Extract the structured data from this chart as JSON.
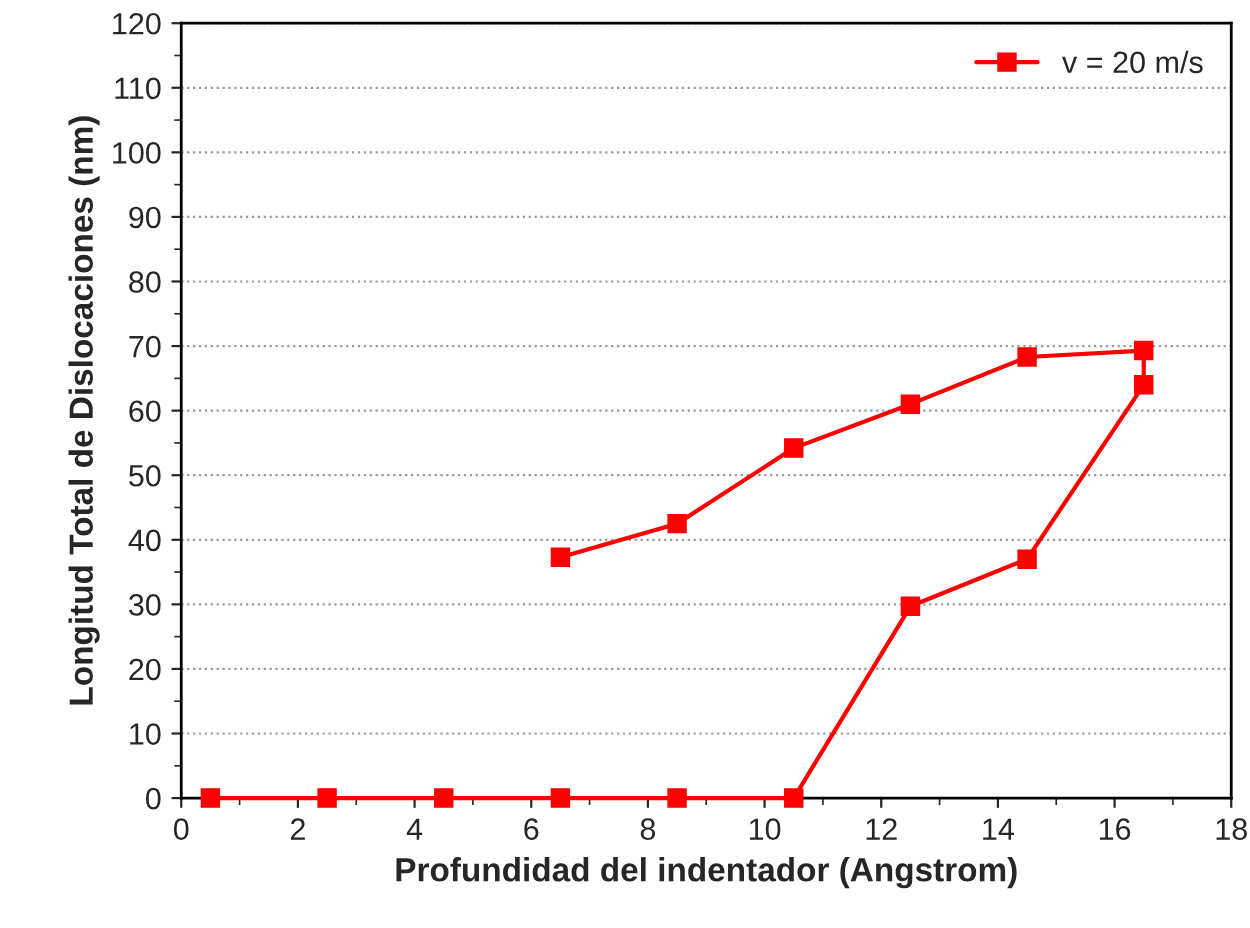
{
  "chart_data": {
    "type": "line",
    "xlabel": "Profundidad del indentador (Angstrom)",
    "ylabel": "Longitud Total de Dislocaciones (nm)",
    "series": [
      {
        "name": "v = 20 m/s",
        "color": "#ff0000",
        "x": [
          0.5,
          2.5,
          4.5,
          6.5,
          8.5,
          10.5,
          12.5,
          14.5,
          16.5,
          16.5,
          14.5,
          12.5,
          10.5,
          8.5,
          6.5
        ],
        "values": [
          0,
          0,
          0,
          0,
          0,
          0,
          29.7,
          37,
          64,
          69.3,
          68.3,
          61,
          54.2,
          42.5,
          37.3
        ]
      }
    ],
    "xlim": [
      0,
      18
    ],
    "xticks": [
      0,
      2,
      4,
      6,
      8,
      10,
      12,
      14,
      16,
      18
    ],
    "ylim": [
      0,
      120
    ],
    "yticks": [
      0,
      10,
      20,
      30,
      40,
      50,
      60,
      70,
      80,
      90,
      100,
      110,
      120
    ],
    "grid": "y",
    "legend": "top right",
    "marker": "square",
    "line_style": "solid"
  }
}
